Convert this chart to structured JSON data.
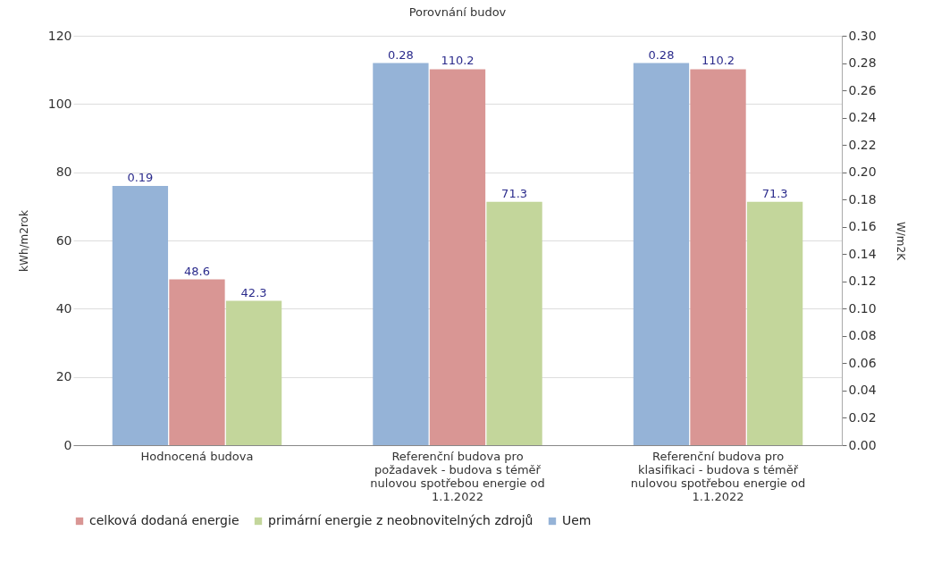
{
  "chart_data": {
    "type": "bar",
    "title": "Porovnání budov",
    "categories": [
      "Hodnocená budova",
      "Referenční budova pro požadavek - budova s téměř nulovou spotřebou energie od 1.1.2022",
      "Referenční budova pro klasifikaci - budova s téměř nulovou spotřebou energie od 1.1.2022"
    ],
    "series": [
      {
        "name": "Uem",
        "color": "#95b3d7",
        "axis": "y2",
        "values": [
          0.19,
          0.28,
          0.28
        ]
      },
      {
        "name": "celková dodaná energie",
        "color": "#d99694",
        "values": [
          48.6,
          110.2,
          110.2
        ]
      },
      {
        "name": "primární energie z neobnovitelných zdrojů",
        "color": "#c3d69b",
        "values": [
          42.3,
          71.3,
          71.3
        ]
      }
    ],
    "ylabel": "kWh/m2rok",
    "y2label": "W/m2K",
    "ylim": [
      0,
      120
    ],
    "yticks": [
      0,
      20,
      40,
      60,
      80,
      100,
      120
    ],
    "y2lim": [
      0,
      0.3
    ],
    "y2ticks": [
      {
        "value": 0,
        "label": "0.00"
      },
      {
        "value": 0.02,
        "label": "0.02"
      },
      {
        "value": 0.04,
        "label": "0.04"
      },
      {
        "value": 0.06,
        "label": "0.06"
      },
      {
        "value": 0.08,
        "label": "0.08"
      },
      {
        "value": 0.1,
        "label": "0.10"
      },
      {
        "value": 0.12,
        "label": "0.12"
      },
      {
        "value": 0.14,
        "label": "0.14"
      },
      {
        "value": 0.16,
        "label": "0.16"
      },
      {
        "value": 0.18,
        "label": "0.18"
      },
      {
        "value": 0.2,
        "label": "0.20"
      },
      {
        "value": 0.22,
        "label": "0.22"
      },
      {
        "value": 0.24,
        "label": "0.24"
      },
      {
        "value": 0.26,
        "label": "0.26"
      },
      {
        "value": 0.28,
        "label": "0.28"
      },
      {
        "value": 0.3,
        "label": "0.30"
      }
    ],
    "grid": "y",
    "legend": "bottom",
    "data_labels": true
  }
}
